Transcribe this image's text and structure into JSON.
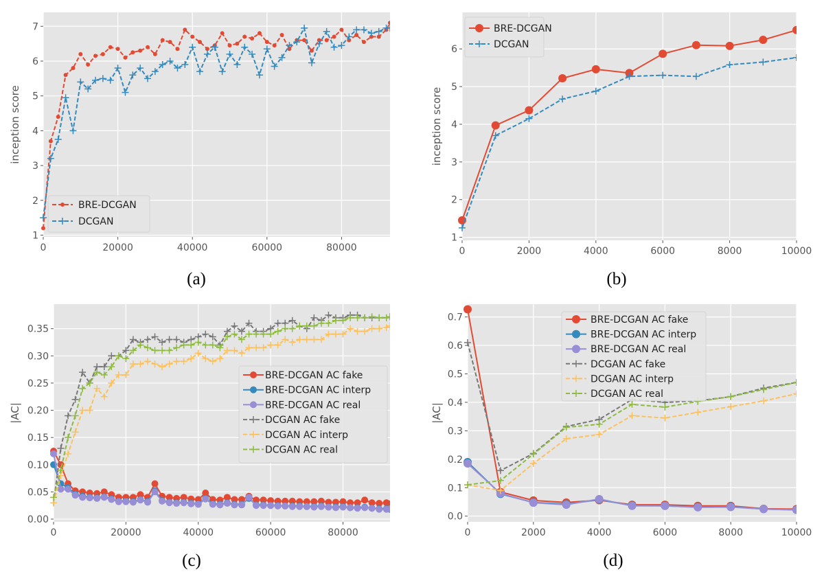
{
  "colors": {
    "background": "#E5E5E5",
    "grid": "#FFFFFF",
    "red": "#E24A33",
    "blue": "#348ABD",
    "purple": "#988ED5",
    "gray": "#777777",
    "yellow": "#FBC15E",
    "green": "#8EBA42",
    "tick_text": "#555555"
  },
  "captions": [
    "(a)",
    "(b)",
    "(c)",
    "(d)"
  ],
  "chart_data": [
    {
      "type": "line",
      "caption": "(a)",
      "xlabel": "",
      "ylabel": "inception score",
      "xlim": [
        0,
        93000
      ],
      "ylim": [
        0.95,
        7.4
      ],
      "xticks": [
        0,
        20000,
        40000,
        60000,
        80000
      ],
      "yticks": [
        1,
        2,
        3,
        4,
        5,
        6,
        7
      ],
      "grid": true,
      "legend": "lower-left",
      "x": [
        0,
        2000,
        4000,
        6000,
        8000,
        10000,
        12000,
        14000,
        16000,
        18000,
        20000,
        22000,
        24000,
        26000,
        28000,
        30000,
        32000,
        34000,
        36000,
        38000,
        40000,
        42000,
        44000,
        46000,
        48000,
        50000,
        52000,
        54000,
        56000,
        58000,
        60000,
        62000,
        64000,
        66000,
        68000,
        70000,
        72000,
        74000,
        76000,
        78000,
        80000,
        82000,
        84000,
        86000,
        88000,
        90000,
        92000,
        93000
      ],
      "series": [
        {
          "name": "BRE-DCGAN",
          "color": "#E24A33",
          "style": "dashed",
          "marker": "dot",
          "values": [
            1.2,
            3.7,
            4.4,
            5.6,
            5.8,
            6.2,
            5.9,
            6.15,
            6.2,
            6.4,
            6.35,
            6.1,
            6.25,
            6.3,
            6.4,
            6.2,
            6.6,
            6.55,
            6.35,
            6.9,
            6.7,
            6.55,
            6.35,
            6.45,
            6.8,
            6.45,
            6.5,
            6.7,
            6.65,
            6.8,
            6.55,
            6.45,
            6.75,
            6.35,
            6.6,
            6.6,
            6.3,
            6.6,
            6.6,
            6.7,
            6.9,
            6.6,
            6.75,
            6.55,
            6.7,
            6.7,
            6.9,
            7.1
          ]
        },
        {
          "name": "DCGAN",
          "color": "#348ABD",
          "style": "dashed",
          "marker": "plus",
          "values": [
            1.5,
            3.2,
            3.75,
            4.95,
            4.0,
            5.4,
            5.2,
            5.45,
            5.5,
            5.45,
            5.8,
            5.1,
            5.6,
            5.8,
            5.5,
            5.7,
            5.9,
            6.0,
            5.8,
            5.9,
            6.4,
            5.7,
            6.2,
            6.4,
            5.7,
            6.2,
            5.9,
            6.4,
            6.2,
            5.6,
            6.35,
            5.85,
            6.1,
            6.45,
            6.55,
            6.95,
            5.95,
            6.5,
            6.85,
            6.4,
            6.45,
            6.7,
            6.9,
            6.9,
            6.8,
            6.85,
            6.95,
            6.95
          ]
        }
      ]
    },
    {
      "type": "line",
      "caption": "(b)",
      "xlabel": "",
      "ylabel": "inception score",
      "xlim": [
        0,
        10000
      ],
      "ylim": [
        0.92,
        6.97
      ],
      "xticks": [
        0,
        2000,
        4000,
        6000,
        8000,
        10000
      ],
      "yticks": [
        1,
        2,
        3,
        4,
        5,
        6
      ],
      "grid": true,
      "legend": "upper-left",
      "x": [
        0,
        1000,
        2000,
        3000,
        4000,
        5000,
        6000,
        7000,
        8000,
        9000,
        10000
      ],
      "series": [
        {
          "name": "BRE-DCGAN",
          "color": "#E24A33",
          "style": "solid",
          "marker": "circle",
          "values": [
            1.45,
            3.97,
            4.37,
            5.22,
            5.46,
            5.36,
            5.87,
            6.1,
            6.08,
            6.24,
            6.5
          ]
        },
        {
          "name": "DCGAN",
          "color": "#348ABD",
          "style": "dashed",
          "marker": "plus",
          "values": [
            1.25,
            3.7,
            4.15,
            4.67,
            4.88,
            5.27,
            5.3,
            5.27,
            5.58,
            5.65,
            5.77
          ]
        }
      ]
    },
    {
      "type": "line",
      "caption": "(c)",
      "xlabel": "",
      "ylabel": "|AC|",
      "xlim": [
        0,
        93000
      ],
      "ylim": [
        -0.005,
        0.395
      ],
      "xticks": [
        0,
        20000,
        40000,
        60000,
        80000
      ],
      "yticks": [
        0.0,
        0.05,
        0.1,
        0.15,
        0.2,
        0.25,
        0.3,
        0.35
      ],
      "ytick_labels": [
        "0.00",
        "0.05",
        "0.10",
        "0.15",
        "0.20",
        "0.25",
        "0.30",
        "0.35"
      ],
      "grid": true,
      "legend": "center-right",
      "x": [
        0,
        2000,
        4000,
        6000,
        8000,
        10000,
        12000,
        14000,
        16000,
        18000,
        20000,
        22000,
        24000,
        26000,
        28000,
        30000,
        32000,
        34000,
        36000,
        38000,
        40000,
        42000,
        44000,
        46000,
        48000,
        50000,
        52000,
        54000,
        56000,
        58000,
        60000,
        62000,
        64000,
        66000,
        68000,
        70000,
        72000,
        74000,
        76000,
        78000,
        80000,
        82000,
        84000,
        86000,
        88000,
        90000,
        92000,
        93000
      ],
      "series": [
        {
          "name": "BRE-DCGAN AC fake",
          "color": "#E24A33",
          "style": "solid",
          "marker": "circle",
          "values": [
            0.125,
            0.1,
            0.065,
            0.052,
            0.05,
            0.048,
            0.047,
            0.05,
            0.045,
            0.04,
            0.04,
            0.04,
            0.045,
            0.04,
            0.065,
            0.042,
            0.04,
            0.038,
            0.04,
            0.037,
            0.036,
            0.048,
            0.036,
            0.035,
            0.04,
            0.036,
            0.036,
            0.042,
            0.035,
            0.035,
            0.034,
            0.033,
            0.033,
            0.033,
            0.032,
            0.032,
            0.032,
            0.033,
            0.031,
            0.031,
            0.032,
            0.03,
            0.03,
            0.035,
            0.03,
            0.029,
            0.03,
            0.028
          ]
        },
        {
          "name": "BRE-DCGAN AC interp",
          "color": "#348ABD",
          "style": "solid",
          "marker": "circle",
          "values": [
            0.1,
            0.065,
            0.058,
            0.046,
            0.042,
            0.04,
            0.039,
            0.041,
            0.037,
            0.033,
            0.033,
            0.032,
            0.036,
            0.032,
            0.052,
            0.034,
            0.031,
            0.03,
            0.031,
            0.029,
            0.028,
            0.038,
            0.028,
            0.027,
            0.03,
            0.027,
            0.027,
            0.038,
            0.026,
            0.026,
            0.025,
            0.025,
            0.024,
            0.024,
            0.024,
            0.023,
            0.023,
            0.024,
            0.022,
            0.022,
            0.023,
            0.021,
            0.021,
            0.022,
            0.02,
            0.019,
            0.019,
            0.018
          ]
        },
        {
          "name": "BRE-DCGAN AC real",
          "color": "#988ED5",
          "style": "solid",
          "marker": "circle",
          "values": [
            0.12,
            0.055,
            0.055,
            0.044,
            0.04,
            0.039,
            0.038,
            0.04,
            0.036,
            0.032,
            0.032,
            0.031,
            0.035,
            0.031,
            0.05,
            0.033,
            0.03,
            0.029,
            0.03,
            0.028,
            0.027,
            0.037,
            0.027,
            0.026,
            0.029,
            0.026,
            0.026,
            0.04,
            0.025,
            0.025,
            0.025,
            0.024,
            0.024,
            0.023,
            0.023,
            0.023,
            0.022,
            0.023,
            0.022,
            0.021,
            0.022,
            0.021,
            0.02,
            0.021,
            0.02,
            0.018,
            0.018,
            0.019
          ]
        },
        {
          "name": "DCGAN AC fake",
          "color": "#777777",
          "style": "dashed",
          "marker": "plus",
          "values": [
            0.03,
            0.13,
            0.19,
            0.22,
            0.27,
            0.25,
            0.28,
            0.28,
            0.3,
            0.3,
            0.31,
            0.33,
            0.325,
            0.33,
            0.335,
            0.325,
            0.33,
            0.33,
            0.325,
            0.33,
            0.335,
            0.34,
            0.335,
            0.32,
            0.345,
            0.355,
            0.345,
            0.36,
            0.345,
            0.345,
            0.35,
            0.36,
            0.36,
            0.365,
            0.355,
            0.35,
            0.37,
            0.365,
            0.375,
            0.37,
            0.37,
            0.375,
            0.375,
            0.37,
            0.37,
            0.37,
            0.37,
            0.372
          ]
        },
        {
          "name": "DCGAN AC interp",
          "color": "#FBC15E",
          "style": "dashed",
          "marker": "plus",
          "values": [
            0.03,
            0.08,
            0.12,
            0.16,
            0.2,
            0.2,
            0.24,
            0.225,
            0.25,
            0.265,
            0.265,
            0.285,
            0.285,
            0.29,
            0.285,
            0.28,
            0.285,
            0.29,
            0.29,
            0.295,
            0.305,
            0.295,
            0.29,
            0.295,
            0.31,
            0.31,
            0.305,
            0.315,
            0.315,
            0.315,
            0.32,
            0.32,
            0.33,
            0.325,
            0.33,
            0.33,
            0.33,
            0.33,
            0.34,
            0.34,
            0.34,
            0.35,
            0.345,
            0.345,
            0.35,
            0.35,
            0.352,
            0.355
          ]
        },
        {
          "name": "DCGAN AC real",
          "color": "#8EBA42",
          "style": "dashed",
          "marker": "plus",
          "values": [
            0.04,
            0.09,
            0.15,
            0.19,
            0.24,
            0.25,
            0.27,
            0.265,
            0.28,
            0.3,
            0.295,
            0.31,
            0.32,
            0.315,
            0.31,
            0.31,
            0.31,
            0.315,
            0.32,
            0.32,
            0.325,
            0.32,
            0.32,
            0.315,
            0.335,
            0.34,
            0.33,
            0.34,
            0.34,
            0.34,
            0.34,
            0.345,
            0.35,
            0.35,
            0.355,
            0.355,
            0.355,
            0.36,
            0.36,
            0.365,
            0.365,
            0.37,
            0.37,
            0.37,
            0.372,
            0.37,
            0.37,
            0.372
          ]
        }
      ]
    },
    {
      "type": "line",
      "caption": "(d)",
      "xlabel": "",
      "ylabel": "|AC|",
      "xlim": [
        0,
        10000
      ],
      "ylim": [
        -0.02,
        0.745
      ],
      "xticks": [
        0,
        2000,
        4000,
        6000,
        8000,
        10000
      ],
      "yticks": [
        0.0,
        0.1,
        0.2,
        0.3,
        0.4,
        0.5,
        0.6,
        0.7
      ],
      "ytick_labels": [
        "0.0",
        "0.1",
        "0.2",
        "0.3",
        "0.4",
        "0.5",
        "0.6",
        "0.7"
      ],
      "grid": true,
      "legend": "upper-center",
      "x": [
        0,
        1000,
        2000,
        3000,
        4000,
        5000,
        6000,
        7000,
        8000,
        9000,
        10000
      ],
      "series": [
        {
          "name": "BRE-DCGAN AC fake",
          "color": "#E24A33",
          "style": "solid",
          "marker": "circle",
          "values": [
            0.727,
            0.085,
            0.055,
            0.048,
            0.056,
            0.04,
            0.04,
            0.036,
            0.036,
            0.026,
            0.025
          ]
        },
        {
          "name": "BRE-DCGAN AC interp",
          "color": "#348ABD",
          "style": "solid",
          "marker": "circle",
          "values": [
            0.19,
            0.078,
            0.048,
            0.042,
            0.058,
            0.037,
            0.036,
            0.032,
            0.033,
            0.025,
            0.022
          ]
        },
        {
          "name": "BRE-DCGAN AC real",
          "color": "#988ED5",
          "style": "solid",
          "marker": "circle",
          "values": [
            0.185,
            0.08,
            0.047,
            0.04,
            0.06,
            0.036,
            0.036,
            0.031,
            0.032,
            0.025,
            0.022
          ]
        },
        {
          "name": "DCGAN AC fake",
          "color": "#777777",
          "style": "dashed",
          "marker": "plus",
          "values": [
            0.61,
            0.16,
            0.22,
            0.315,
            0.34,
            0.41,
            0.4,
            0.405,
            0.42,
            0.45,
            0.47
          ]
        },
        {
          "name": "DCGAN AC interp",
          "color": "#FBC15E",
          "style": "dashed",
          "marker": "plus",
          "values": [
            0.11,
            0.09,
            0.185,
            0.272,
            0.287,
            0.353,
            0.345,
            0.365,
            0.385,
            0.405,
            0.43
          ]
        },
        {
          "name": "DCGAN AC real",
          "color": "#8EBA42",
          "style": "dashed",
          "marker": "plus",
          "values": [
            0.11,
            0.125,
            0.218,
            0.312,
            0.323,
            0.393,
            0.383,
            0.403,
            0.42,
            0.445,
            0.47
          ]
        }
      ]
    }
  ]
}
